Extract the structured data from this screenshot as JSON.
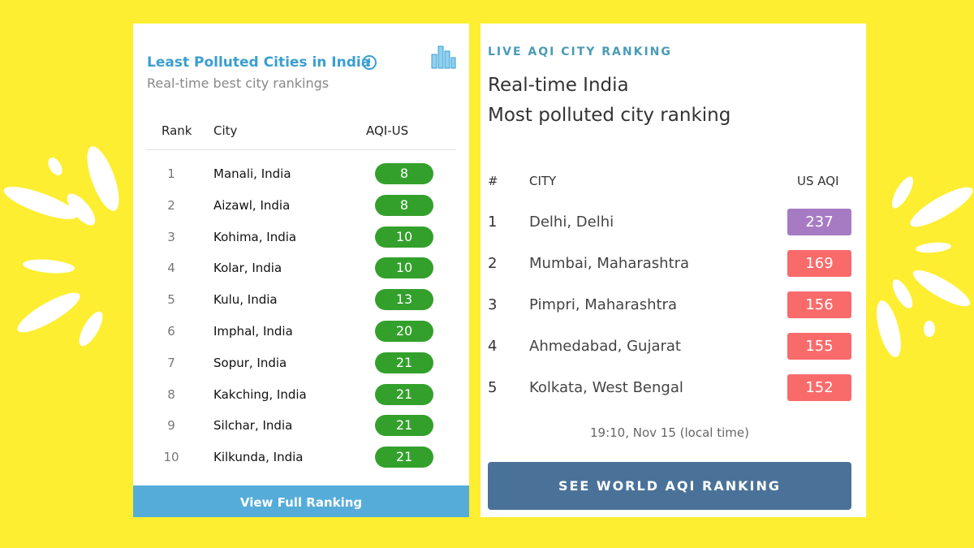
{
  "left": {
    "title": "Least Polluted Cities in India",
    "subtitle": "Real-time best city rankings",
    "headers": [
      "Rank",
      "City",
      "AQI-US"
    ],
    "badge_color": "#33a02c",
    "rows": [
      [
        1,
        "Manali, India",
        8
      ],
      [
        2,
        "Aizawl, India",
        8
      ],
      [
        3,
        "Kohima, India",
        10
      ],
      [
        4,
        "Kolar, India",
        10
      ],
      [
        5,
        "Kulu, India",
        13
      ],
      [
        6,
        "Imphal, India",
        20
      ],
      [
        7,
        "Sopur, India",
        21
      ],
      [
        8,
        "Kakching, India",
        21
      ],
      [
        9,
        "Silchar, India",
        21
      ],
      [
        10,
        "Kilkunda, India",
        21
      ]
    ],
    "button": "View Full Ranking"
  },
  "right": {
    "eyebrow": "LIVE AQI CITY RANKING",
    "heading": [
      "Real-time India",
      "Most polluted city ranking"
    ],
    "headers": [
      "#",
      "CITY",
      "US AQI"
    ],
    "rows": [
      [
        1,
        "Delhi, Delhi",
        237
      ],
      [
        2,
        "Mumbai, Maharashtra",
        169
      ],
      [
        3,
        "Pimpri, Maharashtra",
        156
      ],
      [
        4,
        "Ahmedabad, Gujarat",
        155
      ],
      [
        5,
        "Kolkata, West Bengal",
        152
      ]
    ],
    "badge_colors": [
      "#a77bc3",
      "#f96b6b",
      "#f96b6b",
      "#f96b6b",
      "#f96b6b"
    ],
    "timestamp": "19:10, Nov 15 (local time)",
    "button": "SEE WORLD AQI RANKING"
  }
}
